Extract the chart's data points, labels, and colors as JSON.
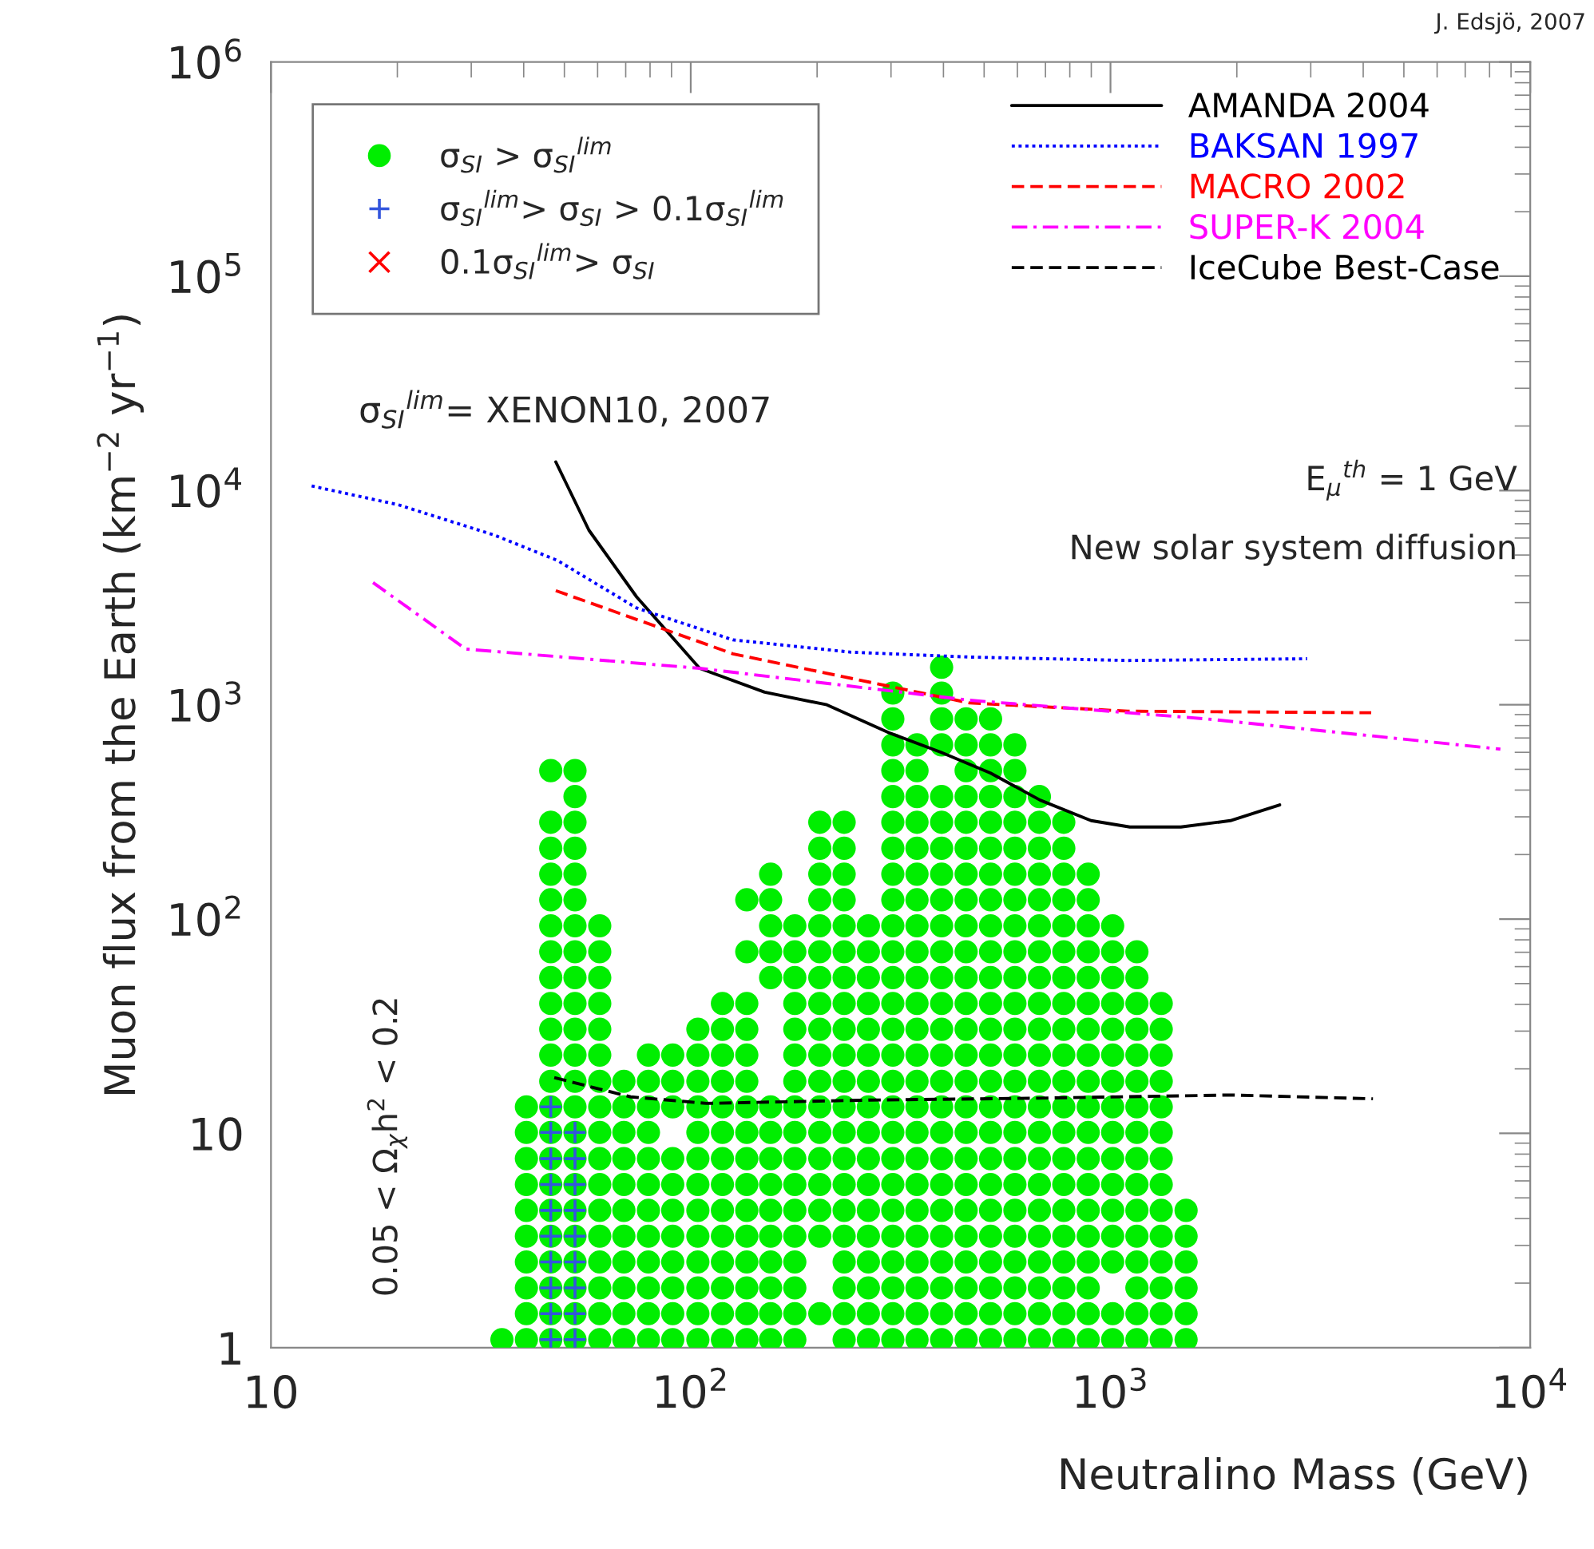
{
  "chart_data": {
    "type": "scatter",
    "xlabel": "Neutralino Mass (GeV)",
    "ylabel": "Muon flux from the Earth (km$^{−2}$ yr$^{−1}$)",
    "log": "xy",
    "xlim": [
      10,
      10000
    ],
    "ylim": [
      1,
      1000000
    ],
    "xticks": [
      10,
      {
        "value": 100,
        "label": "10$^{2}$"
      },
      {
        "value": 1000,
        "label": "10$^{3}$"
      },
      {
        "value": 10000,
        "label": "10$^{4}$"
      }
    ],
    "yticks": [
      1,
      10,
      {
        "value": 100,
        "label": "10$^{2}$"
      },
      {
        "value": 1000,
        "label": "10$^{3}$"
      },
      {
        "value": 10000,
        "label": "10$^{4}$"
      },
      {
        "value": 100000,
        "label": "10$^{5}$"
      },
      {
        "value": 1000000,
        "label": "10$^{6}$"
      }
    ],
    "legend": "top",
    "annotations": [
      "σ$_{SI}$$^{lim}$= XENON10, 2007",
      "E$_{μ}$$^{th}$ = 1 GeV",
      "New solar system diffusion",
      "0.05 < Ω$_{χ}$h$^{2}$ < 0.2",
      "J. Edsjö, 2007"
    ],
    "series": [
      {
        "name": "σ$_{SI}$ > σ$_{SI}$$^{lim}$",
        "type": "scatter",
        "marker": "circle",
        "color": "#00ee00",
        "x": [
          35.5
        ],
        "values": [
          1.09
        ]
      },
      {
        "type": "scatter",
        "marker": "circle",
        "color": "#00ee00",
        "x": [
          40.6,
          40.6,
          40.6,
          40.6,
          40.6,
          40.6,
          40.6,
          40.6,
          40.6,
          40.6
        ],
        "values": [
          1.09,
          1.44,
          1.9,
          2.51,
          3.31,
          4.37,
          5.77,
          7.62,
          10.1,
          13.3
        ]
      },
      {
        "type": "scatter",
        "marker": "circle",
        "color": "#00ee00",
        "x": [
          46.4,
          46.4,
          46.4,
          46.4,
          46.4,
          46.4,
          46.4,
          46.4,
          46.4,
          46.4,
          46.4,
          46.4,
          46.4,
          46.4,
          46.4,
          46.4,
          46.4,
          46.4,
          46.4,
          46.4,
          46.4,
          46.4
        ],
        "values": [
          1.09,
          1.44,
          1.9,
          2.51,
          3.31,
          4.37,
          5.77,
          7.62,
          10.1,
          13.3,
          17.5,
          23.2,
          30.6,
          40.4,
          53.3,
          70.4,
          93,
          123,
          162,
          214,
          283,
          493
        ]
      },
      {
        "type": "scatter",
        "marker": "circle",
        "color": "#00ee00",
        "x": [
          53,
          53,
          53,
          53,
          53,
          53,
          53,
          53,
          53,
          53,
          53,
          53,
          53,
          53,
          53,
          53,
          53,
          53,
          53,
          53,
          53,
          53,
          53
        ],
        "values": [
          1.09,
          1.44,
          1.9,
          2.51,
          3.31,
          4.37,
          5.77,
          7.62,
          10.1,
          13.3,
          17.5,
          23.2,
          30.6,
          40.4,
          53.3,
          70.4,
          93,
          123,
          162,
          214,
          283,
          373,
          493
        ]
      },
      {
        "type": "scatter",
        "marker": "circle",
        "color": "#00ee00",
        "x": [
          60.7,
          60.7,
          60.7,
          60.7,
          60.7,
          60.7,
          60.7,
          60.7,
          60.7,
          60.7,
          60.7,
          60.7,
          60.7,
          60.7,
          60.7,
          60.7,
          60.7
        ],
        "values": [
          1.09,
          1.44,
          1.9,
          2.51,
          3.31,
          4.37,
          5.77,
          7.62,
          10.1,
          13.3,
          17.5,
          23.2,
          30.6,
          40.4,
          53.3,
          70.4,
          93
        ]
      },
      {
        "type": "scatter",
        "marker": "circle",
        "color": "#00ee00",
        "x": [
          69.3,
          69.3,
          69.3,
          69.3,
          69.3,
          69.3,
          69.3,
          69.3,
          69.3,
          69.3,
          69.3
        ],
        "values": [
          1.09,
          1.44,
          1.9,
          2.51,
          3.31,
          4.37,
          5.77,
          7.62,
          10.1,
          13.3,
          17.5
        ]
      },
      {
        "type": "scatter",
        "marker": "circle",
        "color": "#00ee00",
        "x": [
          79.3,
          79.3,
          79.3,
          79.3,
          79.3,
          79.3,
          79.3,
          79.3,
          79.3,
          79.3,
          79.3,
          79.3
        ],
        "values": [
          1.09,
          1.44,
          1.9,
          2.51,
          3.31,
          4.37,
          5.77,
          7.62,
          10.1,
          13.3,
          17.5,
          23.2
        ]
      },
      {
        "type": "scatter",
        "marker": "circle",
        "color": "#00ee00",
        "x": [
          90.6,
          90.6,
          90.6,
          90.6,
          90.6,
          90.6,
          90.6,
          90.6,
          90.6,
          90.6,
          90.6
        ],
        "values": [
          1.09,
          1.44,
          1.9,
          2.51,
          3.31,
          4.37,
          5.77,
          7.62,
          13.3,
          17.5,
          23.2
        ]
      },
      {
        "type": "scatter",
        "marker": "circle",
        "color": "#00ee00",
        "x": [
          104,
          104,
          104,
          104,
          104,
          104,
          104,
          104,
          104,
          104,
          104,
          104,
          104
        ],
        "values": [
          1.09,
          1.44,
          1.9,
          2.51,
          3.31,
          4.37,
          5.77,
          7.62,
          10.1,
          13.3,
          17.5,
          23.2,
          30.6
        ]
      },
      {
        "type": "scatter",
        "marker": "circle",
        "color": "#00ee00",
        "x": [
          119,
          119,
          119,
          119,
          119,
          119,
          119,
          119,
          119,
          119,
          119,
          119,
          119,
          119
        ],
        "values": [
          1.09,
          1.44,
          1.9,
          2.51,
          3.31,
          4.37,
          5.77,
          7.62,
          10.1,
          13.3,
          17.5,
          23.2,
          30.6,
          40.4
        ]
      },
      {
        "type": "scatter",
        "marker": "circle",
        "color": "#00ee00",
        "x": [
          136,
          136,
          136,
          136,
          136,
          136,
          136,
          136,
          136,
          136,
          136,
          136,
          136,
          136,
          136,
          136
        ],
        "values": [
          1.09,
          1.44,
          1.9,
          2.51,
          3.31,
          4.37,
          5.77,
          7.62,
          10.1,
          13.3,
          17.5,
          23.2,
          30.6,
          40.4,
          70.4,
          123
        ]
      },
      {
        "type": "scatter",
        "marker": "circle",
        "color": "#00ee00",
        "x": [
          155,
          155,
          155,
          155,
          155,
          155,
          155,
          155,
          155,
          155,
          155,
          155,
          155,
          155,
          155
        ],
        "values": [
          1.09,
          1.44,
          1.9,
          2.51,
          3.31,
          4.37,
          5.77,
          7.62,
          10.1,
          13.3,
          53.3,
          70.4,
          93,
          123,
          162
        ]
      },
      {
        "type": "scatter",
        "marker": "circle",
        "color": "#00ee00",
        "x": [
          177,
          177,
          177,
          177,
          177,
          177,
          177,
          177,
          177,
          177,
          177,
          177,
          177,
          177,
          177,
          177,
          177
        ],
        "values": [
          1.09,
          1.44,
          1.9,
          2.51,
          3.31,
          4.37,
          5.77,
          7.62,
          10.1,
          13.3,
          17.5,
          23.2,
          30.6,
          40.4,
          53.3,
          70.4,
          93
        ]
      },
      {
        "type": "scatter",
        "marker": "circle",
        "color": "#00ee00",
        "x": [
          203,
          203,
          203,
          203,
          203,
          203,
          203,
          203,
          203,
          203,
          203,
          203,
          203,
          203,
          203,
          203,
          203,
          203
        ],
        "values": [
          1.44,
          3.31,
          4.37,
          5.77,
          7.62,
          10.1,
          13.3,
          17.5,
          23.2,
          30.6,
          40.4,
          53.3,
          70.4,
          93,
          123,
          162,
          214,
          283
        ]
      },
      {
        "type": "scatter",
        "marker": "circle",
        "color": "#00ee00",
        "x": [
          232,
          232,
          232,
          232,
          232,
          232,
          232,
          232,
          232,
          232,
          232,
          232,
          232,
          232,
          232,
          232,
          232,
          232,
          232,
          232,
          232
        ],
        "values": [
          1.09,
          1.44,
          1.9,
          2.51,
          3.31,
          4.37,
          5.77,
          7.62,
          10.1,
          13.3,
          17.5,
          23.2,
          30.6,
          40.4,
          53.3,
          70.4,
          93,
          123,
          162,
          214,
          283
        ]
      },
      {
        "type": "scatter",
        "marker": "circle",
        "color": "#00ee00",
        "x": [
          265,
          265,
          265,
          265,
          265,
          265,
          265,
          265,
          265,
          265,
          265,
          265,
          265,
          265,
          265,
          265,
          265
        ],
        "values": [
          1.09,
          1.44,
          1.9,
          2.51,
          3.31,
          4.37,
          5.77,
          7.62,
          10.1,
          13.3,
          17.5,
          23.2,
          30.6,
          40.4,
          53.3,
          70.4,
          93
        ]
      },
      {
        "type": "scatter",
        "marker": "circle",
        "color": "#00ee00",
        "x": [
          303,
          303,
          303,
          303,
          303,
          303,
          303,
          303,
          303,
          303,
          303,
          303,
          303,
          303,
          303,
          303,
          303,
          303,
          303,
          303,
          303,
          303,
          303,
          303,
          303,
          303
        ],
        "values": [
          1.09,
          1.44,
          1.9,
          2.51,
          3.31,
          4.37,
          5.77,
          7.62,
          10.1,
          13.3,
          17.5,
          23.2,
          30.6,
          40.4,
          53.3,
          70.4,
          93,
          123,
          162,
          214,
          283,
          373,
          493,
          650,
          859,
          1134
        ]
      },
      {
        "type": "scatter",
        "marker": "circle",
        "color": "#00ee00",
        "x": [
          346,
          346,
          346,
          346,
          346,
          346,
          346,
          346,
          346,
          346,
          346,
          346,
          346,
          346,
          346,
          346,
          346,
          346,
          346,
          346,
          346,
          346,
          346,
          346
        ],
        "values": [
          1.09,
          1.44,
          1.9,
          2.51,
          3.31,
          4.37,
          5.77,
          7.62,
          10.1,
          13.3,
          17.5,
          23.2,
          30.6,
          40.4,
          53.3,
          70.4,
          93,
          123,
          162,
          214,
          283,
          373,
          493,
          650
        ]
      },
      {
        "type": "scatter",
        "marker": "circle",
        "color": "#00ee00",
        "x": [
          396,
          396,
          396,
          396,
          396,
          396,
          396,
          396,
          396,
          396,
          396,
          396,
          396,
          396,
          396,
          396,
          396,
          396,
          396,
          396,
          396,
          396,
          396,
          396,
          396,
          396
        ],
        "values": [
          1.09,
          1.44,
          1.9,
          2.51,
          3.31,
          4.37,
          5.77,
          7.62,
          10.1,
          13.3,
          17.5,
          23.2,
          30.6,
          40.4,
          53.3,
          70.4,
          93,
          123,
          162,
          214,
          283,
          373,
          650,
          859,
          1134,
          1497
        ]
      },
      {
        "type": "scatter",
        "marker": "circle",
        "color": "#00ee00",
        "x": [
          453,
          453,
          453,
          453,
          453,
          453,
          453,
          453,
          453,
          453,
          453,
          453,
          453,
          453,
          453,
          453,
          453,
          453,
          453,
          453,
          453,
          453,
          453,
          453,
          453
        ],
        "values": [
          1.09,
          1.44,
          1.9,
          2.51,
          3.31,
          4.37,
          5.77,
          7.62,
          10.1,
          13.3,
          17.5,
          23.2,
          30.6,
          40.4,
          53.3,
          70.4,
          93,
          123,
          162,
          214,
          283,
          373,
          493,
          650,
          859
        ]
      },
      {
        "type": "scatter",
        "marker": "circle",
        "color": "#00ee00",
        "x": [
          518,
          518,
          518,
          518,
          518,
          518,
          518,
          518,
          518,
          518,
          518,
          518,
          518,
          518,
          518,
          518,
          518,
          518,
          518,
          518,
          518,
          518,
          518,
          518,
          518
        ],
        "values": [
          1.09,
          1.44,
          1.9,
          2.51,
          3.31,
          4.37,
          5.77,
          7.62,
          10.1,
          13.3,
          17.5,
          23.2,
          30.6,
          40.4,
          53.3,
          70.4,
          93,
          123,
          162,
          214,
          283,
          373,
          493,
          650,
          859
        ]
      },
      {
        "type": "scatter",
        "marker": "circle",
        "color": "#00ee00",
        "x": [
          592,
          592,
          592,
          592,
          592,
          592,
          592,
          592,
          592,
          592,
          592,
          592,
          592,
          592,
          592,
          592,
          592,
          592,
          592,
          592,
          592,
          592,
          592,
          592
        ],
        "values": [
          1.09,
          1.44,
          1.9,
          2.51,
          3.31,
          4.37,
          5.77,
          7.62,
          10.1,
          13.3,
          17.5,
          23.2,
          30.6,
          40.4,
          53.3,
          70.4,
          93,
          123,
          162,
          214,
          283,
          373,
          493,
          650
        ]
      },
      {
        "type": "scatter",
        "marker": "circle",
        "color": "#00ee00",
        "x": [
          677,
          677,
          677,
          677,
          677,
          677,
          677,
          677,
          677,
          677,
          677,
          677,
          677,
          677,
          677,
          677,
          677,
          677,
          677,
          677,
          677,
          677
        ],
        "values": [
          1.09,
          1.44,
          1.9,
          2.51,
          3.31,
          4.37,
          5.77,
          7.62,
          10.1,
          13.3,
          17.5,
          23.2,
          30.6,
          40.4,
          53.3,
          70.4,
          93,
          123,
          162,
          214,
          283,
          373
        ]
      },
      {
        "type": "scatter",
        "marker": "circle",
        "color": "#00ee00",
        "x": [
          774,
          774,
          774,
          774,
          774,
          774,
          774,
          774,
          774,
          774,
          774,
          774,
          774,
          774,
          774,
          774,
          774,
          774,
          774,
          774,
          774
        ],
        "values": [
          1.09,
          1.44,
          1.9,
          2.51,
          3.31,
          4.37,
          5.77,
          7.62,
          10.1,
          13.3,
          17.5,
          23.2,
          30.6,
          40.4,
          53.3,
          70.4,
          93,
          123,
          162,
          214,
          283
        ]
      },
      {
        "type": "scatter",
        "marker": "circle",
        "color": "#00ee00",
        "x": [
          885,
          885,
          885,
          885,
          885,
          885,
          885,
          885,
          885,
          885,
          885,
          885,
          885,
          885,
          885,
          885,
          885,
          885,
          885
        ],
        "values": [
          1.09,
          1.44,
          1.9,
          2.51,
          3.31,
          4.37,
          5.77,
          7.62,
          10.1,
          13.3,
          17.5,
          23.2,
          30.6,
          40.4,
          53.3,
          70.4,
          93,
          123,
          162
        ]
      },
      {
        "type": "scatter",
        "marker": "circle",
        "color": "#00ee00",
        "x": [
          1012,
          1012,
          1012,
          1012,
          1012,
          1012,
          1012,
          1012,
          1012,
          1012,
          1012,
          1012,
          1012,
          1012,
          1012,
          1012
        ],
        "values": [
          1.09,
          1.44,
          2.51,
          3.31,
          4.37,
          5.77,
          7.62,
          10.1,
          13.3,
          17.5,
          23.2,
          30.6,
          40.4,
          53.3,
          70.4,
          93
        ]
      },
      {
        "type": "scatter",
        "marker": "circle",
        "color": "#00ee00",
        "x": [
          1156,
          1156,
          1156,
          1156,
          1156,
          1156,
          1156,
          1156,
          1156,
          1156,
          1156,
          1156,
          1156,
          1156,
          1156,
          1156
        ],
        "values": [
          1.09,
          1.44,
          1.9,
          2.51,
          3.31,
          4.37,
          5.77,
          7.62,
          10.1,
          13.3,
          17.5,
          23.2,
          30.6,
          40.4,
          53.3,
          70.4
        ]
      },
      {
        "type": "scatter",
        "marker": "circle",
        "color": "#00ee00",
        "x": [
          1321,
          1321,
          1321,
          1321,
          1321,
          1321,
          1321,
          1321,
          1321,
          1321,
          1321,
          1321,
          1321,
          1321
        ],
        "values": [
          1.09,
          1.44,
          1.9,
          2.51,
          3.31,
          4.37,
          5.77,
          7.62,
          10.1,
          13.3,
          17.5,
          23.2,
          30.6,
          40.4
        ]
      },
      {
        "type": "scatter",
        "marker": "circle",
        "color": "#00ee00",
        "x": [
          1514,
          1514,
          1514,
          1514,
          1514,
          1514
        ],
        "values": [
          1.09,
          1.44,
          1.9,
          2.51,
          3.31,
          4.37
        ]
      },
      {
        "name": "σ$_{SI}$$^{lim}$> σ$_{SI}$ > 0.1σ$_{SI}$$^{lim}$",
        "type": "scatter",
        "marker": "plus",
        "color": "#3355dd",
        "x": [
          46.4,
          46.4,
          46.4,
          46.4,
          46.4,
          46.4,
          46.4,
          46.4,
          46.4,
          46.4,
          53,
          53,
          53,
          53,
          53,
          53,
          53,
          53,
          53
        ],
        "values": [
          1.09,
          1.44,
          1.9,
          2.51,
          3.31,
          4.37,
          5.77,
          7.62,
          10.1,
          13.3,
          1.09,
          1.44,
          1.9,
          2.51,
          3.31,
          4.37,
          5.77,
          7.62,
          10.1
        ]
      },
      {
        "name": "0.1σ$_{SI}$$^{lim}$> σ$_{SI}$",
        "type": "scatter",
        "marker": "cross",
        "color": "#ff0000"
      },
      {
        "name": "AMANDA 2004",
        "type": "line",
        "line_style": "solid",
        "color": "#000000",
        "x": [
          47.7,
          57.2,
          74.3,
          105,
          150,
          211,
          299,
          395,
          518,
          680,
          899,
          1112,
          1471,
          1930,
          2530
        ],
        "values": [
          13600,
          6530,
          3190,
          1480,
          1146,
          1000,
          736,
          600,
          480,
          359,
          288,
          269,
          269,
          288,
          341
        ]
      },
      {
        "name": "BAKSAN 1997",
        "type": "line",
        "line_style": "dotted",
        "color": "#0000ff",
        "x": [
          12.5,
          20.1,
          34,
          48.1,
          74.3,
          126,
          241,
          462,
          1100,
          2940
        ],
        "values": [
          10500,
          8580,
          6200,
          4720,
          2830,
          2010,
          1760,
          1670,
          1610,
          1640
        ]
      },
      {
        "name": "MACRO 2002",
        "type": "line",
        "line_style": "dashed",
        "color": "#ff0000",
        "x": [
          47.7,
          126,
          462,
          1100,
          4180
        ],
        "values": [
          3410,
          1730,
          1020,
          934,
          918
        ]
      },
      {
        "name": "SUPER-K 2004",
        "type": "line",
        "line_style": "dashdot",
        "color": "#ff00ff",
        "x": [
          17.5,
          29.1,
          105,
          462,
          1710,
          8490
        ],
        "values": [
          3720,
          1820,
          1480,
          1050,
          858,
          621
        ]
      },
      {
        "name": "IceCube Best-Case",
        "type": "line",
        "line_style": "dashed",
        "color": "#000000",
        "x": [
          47.3,
          71.9,
          109,
          268,
          680,
          1930,
          4220
        ],
        "values": [
          18.2,
          14.8,
          13.8,
          14.3,
          14.6,
          15.1,
          14.5
        ]
      }
    ]
  }
}
